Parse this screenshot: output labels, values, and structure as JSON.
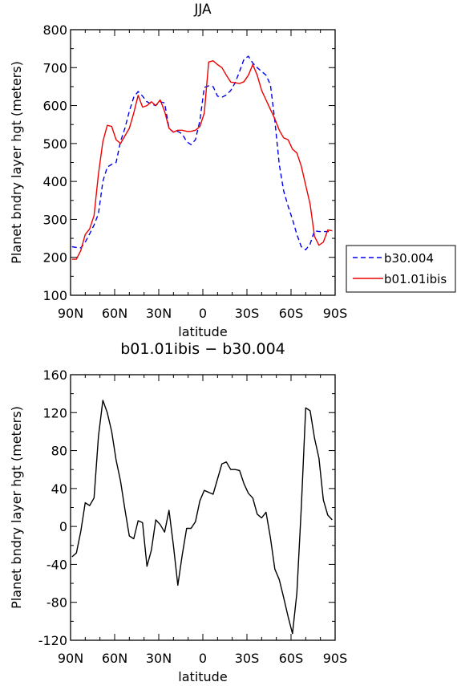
{
  "chart_data": [
    {
      "type": "line",
      "title": "JJA",
      "xlabel": "latitude",
      "ylabel": "Planet bndry layer hgt (meters)",
      "xlim": [
        -90,
        90
      ],
      "ylim": [
        100,
        800
      ],
      "x_ticks": [
        -90,
        -60,
        -30,
        0,
        30,
        60,
        90
      ],
      "x_tick_labels": [
        "90N",
        "60N",
        "30N",
        "0",
        "30S",
        "60S",
        "90S"
      ],
      "y_ticks": [
        100,
        200,
        300,
        400,
        500,
        600,
        700,
        800
      ],
      "y_tick_labels": [
        "100",
        "200",
        "300",
        "400",
        "500",
        "600",
        "700",
        "800"
      ],
      "grid": false,
      "legend": "right",
      "series": [
        {
          "name": "b30.004",
          "color": "#0000ee",
          "dash": "dashed",
          "x": [
            -89,
            -86,
            -83,
            -80,
            -77,
            -74,
            -71,
            -68,
            -65,
            -62,
            -59,
            -56,
            -53,
            -50,
            -47,
            -44,
            -41,
            -38,
            -35,
            -32,
            -29,
            -26,
            -23,
            -20,
            -17,
            -14,
            -11,
            -8,
            -5,
            -2,
            1,
            4,
            7,
            10,
            13,
            16,
            19,
            22,
            25,
            28,
            31,
            34,
            37,
            40,
            43,
            46,
            49,
            52,
            55,
            58,
            61,
            64,
            67,
            70,
            73,
            76,
            79,
            82,
            85,
            88
          ],
          "y": [
            228,
            226,
            225,
            240,
            262,
            285,
            315,
            400,
            438,
            445,
            450,
            505,
            540,
            585,
            622,
            637,
            625,
            610,
            604,
            600,
            610,
            607,
            540,
            530,
            532,
            525,
            505,
            497,
            510,
            560,
            648,
            652,
            650,
            625,
            622,
            628,
            640,
            660,
            690,
            722,
            730,
            712,
            700,
            690,
            680,
            655,
            560,
            445,
            375,
            335,
            300,
            260,
            228,
            220,
            235,
            270,
            268,
            268,
            268,
            268
          ]
        },
        {
          "name": "b01.01ibis",
          "color": "#ee0000",
          "dash": "solid",
          "x": [
            -89,
            -86,
            -83,
            -80,
            -77,
            -74,
            -71,
            -68,
            -65,
            -62,
            -59,
            -56,
            -53,
            -50,
            -47,
            -44,
            -41,
            -38,
            -35,
            -32,
            -29,
            -26,
            -23,
            -20,
            -17,
            -14,
            -11,
            -8,
            -5,
            -2,
            1,
            4,
            7,
            10,
            13,
            16,
            19,
            22,
            25,
            28,
            31,
            34,
            37,
            40,
            43,
            46,
            49,
            52,
            55,
            58,
            61,
            64,
            67,
            70,
            73,
            76,
            79,
            82,
            85,
            88
          ],
          "y": [
            195,
            195,
            218,
            260,
            275,
            310,
            420,
            505,
            548,
            545,
            510,
            500,
            520,
            540,
            580,
            627,
            596,
            600,
            610,
            600,
            615,
            585,
            540,
            530,
            535,
            535,
            532,
            532,
            535,
            545,
            580,
            715,
            718,
            708,
            700,
            680,
            662,
            660,
            658,
            663,
            680,
            708,
            680,
            640,
            615,
            590,
            565,
            535,
            515,
            510,
            485,
            475,
            440,
            390,
            340,
            255,
            232,
            240,
            272,
            270
          ]
        }
      ]
    },
    {
      "type": "line",
      "title": "b01.01ibis − b30.004",
      "xlabel": "latitude",
      "ylabel": "Planet bndry layer hgt (meters)",
      "xlim": [
        -90,
        90
      ],
      "ylim": [
        -120,
        160
      ],
      "x_ticks": [
        -90,
        -60,
        -30,
        0,
        30,
        60,
        90
      ],
      "x_tick_labels": [
        "90N",
        "60N",
        "30N",
        "0",
        "30S",
        "60S",
        "90S"
      ],
      "y_ticks": [
        -120,
        -80,
        -40,
        0,
        40,
        80,
        120,
        160
      ],
      "y_tick_labels": [
        "-120",
        "-80",
        "-40",
        "0",
        "40",
        "80",
        "120",
        "160"
      ],
      "grid": false,
      "series": [
        {
          "color": "#000000",
          "dash": "solid",
          "x": [
            -89,
            -86,
            -83,
            -80,
            -77,
            -74,
            -71,
            -68,
            -65,
            -62,
            -59,
            -56,
            -53,
            -50,
            -47,
            -44,
            -41,
            -38,
            -35,
            -32,
            -29,
            -26,
            -23,
            -20,
            -17,
            -14,
            -11,
            -8,
            -5,
            -2,
            1,
            4,
            7,
            10,
            13,
            16,
            19,
            22,
            25,
            28,
            31,
            34,
            37,
            40,
            43,
            46,
            49,
            52,
            55,
            58,
            61,
            64,
            67,
            70,
            73,
            76,
            79,
            82,
            85,
            88
          ],
          "y": [
            -32,
            -28,
            -5,
            25,
            22,
            30,
            95,
            133,
            120,
            100,
            70,
            48,
            18,
            -10,
            -13,
            6,
            4,
            -42,
            -25,
            7,
            2,
            -6,
            17,
            -20,
            -62,
            -30,
            -2,
            -2,
            5,
            27,
            38,
            36,
            34,
            50,
            66,
            68,
            60,
            60,
            59,
            45,
            35,
            30,
            13,
            9,
            15,
            -12,
            -45,
            -56,
            -75,
            -95,
            -113,
            -70,
            20,
            125,
            122,
            93,
            72,
            28,
            12,
            7
          ]
        }
      ]
    }
  ]
}
